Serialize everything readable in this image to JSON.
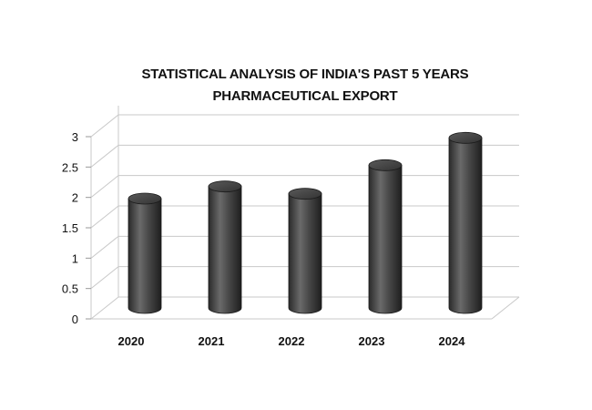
{
  "chart_data": {
    "type": "bar",
    "title_line1": "STATISTICAL ANALYSIS OF INDIA'S PAST 5 YEARS",
    "title_line2": "PHARMACEUTICAL EXPORT",
    "categories": [
      "2020",
      "2021",
      "2022",
      "2023",
      "2024"
    ],
    "values": [
      1.8,
      2.0,
      1.88,
      2.35,
      2.8
    ],
    "yticks": [
      "0",
      "0.5",
      "1",
      "1.5",
      "2",
      "2.5",
      "3"
    ],
    "ylim": [
      0,
      3
    ],
    "grid": true,
    "style": "3d-cylinder",
    "bar_color": "#4a4a4a"
  }
}
